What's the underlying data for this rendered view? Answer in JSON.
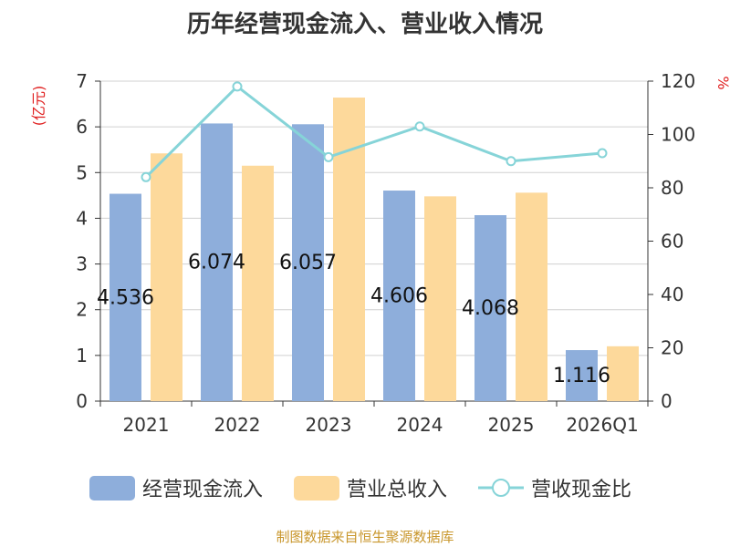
{
  "chart_data": {
    "type": "bar",
    "title": "历年经营现金流入、营业收入情况",
    "categories": [
      "2021",
      "2022",
      "2023",
      "2024",
      "2025",
      "2026Q1"
    ],
    "y_left_label": "(亿元)",
    "y_right_label": "%",
    "y_left_range": [
      0,
      7
    ],
    "y_left_ticks": [
      "0",
      "1",
      "2",
      "3",
      "4",
      "5",
      "6",
      "7"
    ],
    "y_right_range": [
      0,
      120
    ],
    "y_right_ticks": [
      "0",
      "20",
      "40",
      "60",
      "80",
      "100",
      "120"
    ],
    "grid": true,
    "legend_position": "bottom",
    "series": [
      {
        "name": "经营现金流入",
        "type": "bar",
        "axis": "left",
        "color": "#8EAEDB",
        "values": [
          4.536,
          6.074,
          6.057,
          4.606,
          4.068,
          1.116
        ],
        "labels": [
          "4.536",
          "6.074",
          "6.057",
          "4.606",
          "4.068",
          "1.116"
        ]
      },
      {
        "name": "营业总收入",
        "type": "bar",
        "axis": "left",
        "color": "#FDD99B",
        "values": [
          5.42,
          5.15,
          6.64,
          4.48,
          4.56,
          1.2
        ]
      },
      {
        "name": "营收现金比",
        "type": "line",
        "axis": "right",
        "color": "#86D4D8",
        "values": [
          84,
          118,
          91.5,
          103,
          90,
          93
        ]
      }
    ]
  },
  "source_text": "制图数据来自恒生聚源数据库"
}
